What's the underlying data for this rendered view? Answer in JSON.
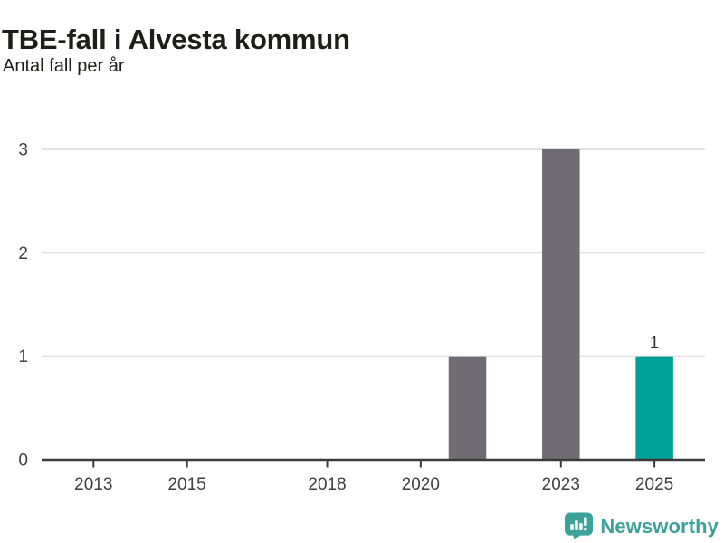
{
  "header": {
    "title": "TBE-fall i Alvesta kommun",
    "subtitle": "Antal fall per år"
  },
  "footer": {
    "logo_text": "Newsworthy",
    "logo_color": "#3ba29b"
  },
  "chart_data": {
    "type": "bar",
    "title": "TBE-fall i Alvesta kommun",
    "subtitle": "Antal fall per år",
    "xlabel": "",
    "ylabel": "Antal fall per år",
    "x": [
      2012,
      2013,
      2014,
      2015,
      2016,
      2017,
      2018,
      2019,
      2020,
      2021,
      2022,
      2023,
      2024,
      2025
    ],
    "values": [
      0,
      0,
      0,
      0,
      0,
      0,
      0,
      0,
      0,
      1,
      0,
      3,
      0,
      1
    ],
    "x_tick_labels": [
      "2013",
      "2015",
      "2018",
      "2020",
      "2023",
      "2025"
    ],
    "y_ticks": [
      0,
      1,
      2,
      3
    ],
    "ylim": [
      0,
      3
    ],
    "grid": "horizontal-gridlines",
    "legend": "none",
    "highlight_x": 2025,
    "value_labels": [
      {
        "x": 2025,
        "text": "1"
      }
    ],
    "colors": {
      "bar_default": "#6f6c73",
      "bar_highlight": "#00a096",
      "axis": "#3b3b3b",
      "gridline": "#e2e2e2",
      "text": "#3f3f3f",
      "value_label": "#303030"
    }
  }
}
